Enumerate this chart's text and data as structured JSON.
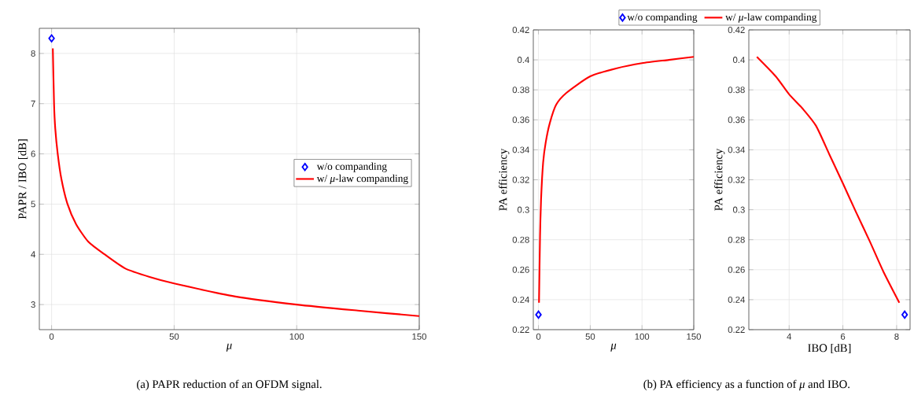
{
  "chart_data": [
    {
      "type": "line",
      "xlabel": "μ",
      "ylabel": "PAPR / IBO [dB]",
      "xlim": [
        -5,
        150
      ],
      "ylim": [
        2.5,
        8.5
      ],
      "xticks": [
        0,
        50,
        100,
        150
      ],
      "yticks": [
        3,
        4,
        5,
        6,
        7,
        8
      ],
      "grid": true,
      "legend": "right",
      "annotations": [
        "(a) PAPR reduction of an OFDM signal."
      ],
      "series": [
        {
          "name": "w/o companding",
          "type": "scatter",
          "marker": "diamond",
          "color": "#0000ff",
          "x": [
            0
          ],
          "values": [
            8.3
          ]
        },
        {
          "name": "w/ *μ*-law companding",
          "color": "#ff0000",
          "x": [
            0.5,
            1,
            1.5,
            2.5,
            4,
            6.5,
            10,
            15,
            21.6,
            30,
            40,
            50,
            75,
            100,
            125,
            150
          ],
          "values": [
            8.1,
            7.0,
            6.5,
            6.0,
            5.5,
            5.0,
            4.6,
            4.25,
            4.0,
            3.72,
            3.55,
            3.42,
            3.16,
            3.0,
            2.88,
            2.77
          ]
        }
      ]
    },
    {
      "type": "line",
      "xlabel": "μ",
      "ylabel": "PA efficiency",
      "xlim": [
        -5,
        150
      ],
      "ylim": [
        0.22,
        0.42
      ],
      "xticks": [
        0,
        50,
        100,
        150
      ],
      "yticks": [
        0.22,
        0.24,
        0.26,
        0.28,
        0.3,
        0.32,
        0.34,
        0.36,
        0.38,
        0.4,
        0.42
      ],
      "grid": true,
      "legend": "top",
      "annotations": [
        "(b) PA efficiency as a function of *μ* and IBO."
      ],
      "series": [
        {
          "name": "w/o companding",
          "type": "scatter",
          "marker": "diamond",
          "color": "#0000ff",
          "x": [
            0
          ],
          "values": [
            0.23
          ]
        },
        {
          "name": "w/ *μ*-law companding",
          "color": "#ff0000",
          "x": [
            0.5,
            1.5,
            2.5,
            4.5,
            7,
            11,
            17,
            27,
            50,
            75,
            100,
            126,
            150
          ],
          "values": [
            0.238,
            0.2825,
            0.307,
            0.3316,
            0.345,
            0.358,
            0.37,
            0.378,
            0.389,
            0.3943,
            0.3978,
            0.4,
            0.402
          ]
        }
      ]
    },
    {
      "type": "line",
      "xlabel": "IBO [dB]",
      "ylabel": "PA efficiency",
      "xlim": [
        2.5,
        8.5
      ],
      "ylim": [
        0.22,
        0.42
      ],
      "xticks": [
        4,
        6,
        8
      ],
      "yticks": [
        0.22,
        0.24,
        0.26,
        0.28,
        0.3,
        0.32,
        0.34,
        0.36,
        0.38,
        0.4,
        0.42
      ],
      "grid": true,
      "series": [
        {
          "type": "scatter",
          "marker": "diamond",
          "color": "#0000ff",
          "x": [
            8.3
          ],
          "values": [
            0.23
          ]
        },
        {
          "color": "#ff0000",
          "x": [
            2.8,
            3.5,
            4,
            4.5,
            5,
            5.5,
            6,
            6.5,
            7,
            7.5,
            8.1
          ],
          "values": [
            0.402,
            0.389,
            0.377,
            0.3675,
            0.356,
            0.3368,
            0.3176,
            0.298,
            0.279,
            0.259,
            0.238
          ]
        }
      ]
    }
  ]
}
